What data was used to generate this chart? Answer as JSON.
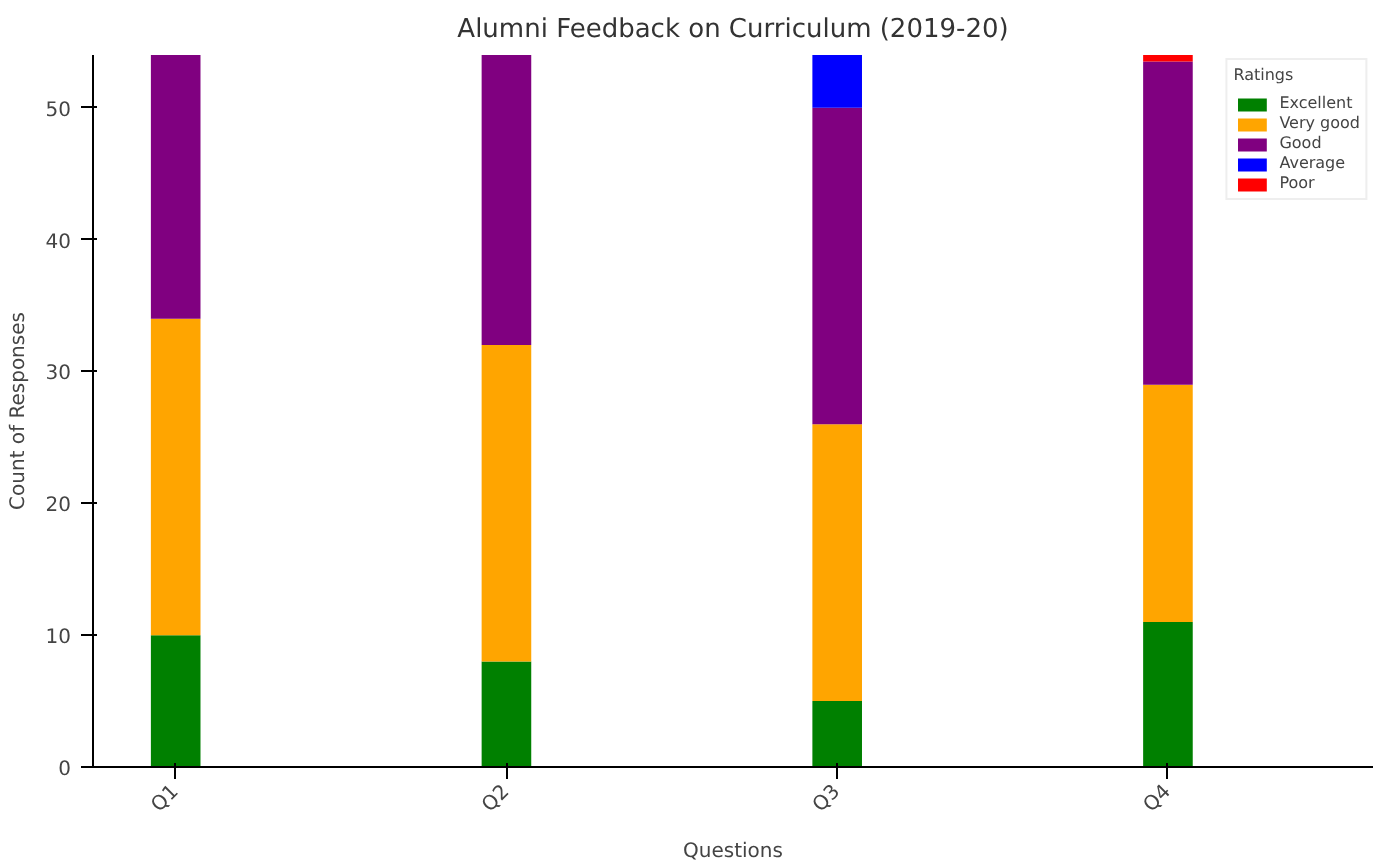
{
  "chart_data": {
    "type": "bar",
    "title": "Alumni Feedback on Curriculum (2019-20)",
    "xlabel": "Questions",
    "ylabel": "Count of Responses",
    "legend_title": "Ratings",
    "categories": [
      "Q1",
      "Q2",
      "Q3",
      "Q4"
    ],
    "stacked": true,
    "series": [
      {
        "name": "Excellent",
        "color": "#008000",
        "values": [
          10,
          8,
          5,
          11
        ]
      },
      {
        "name": "Very good",
        "color": "#ffa500",
        "values": [
          24,
          24,
          21,
          18
        ]
      },
      {
        "name": "Good",
        "color": "#800080",
        "values": [
          20,
          22,
          24,
          24.5
        ]
      },
      {
        "name": "Average",
        "color": "#0000ff",
        "values": [
          0,
          0,
          4,
          0
        ]
      },
      {
        "name": "Poor",
        "color": "#ff0000",
        "values": [
          0,
          0,
          0,
          0.5
        ]
      }
    ],
    "ylim": [
      0,
      54
    ],
    "yticks": [
      0,
      10,
      20,
      30,
      40,
      50
    ],
    "grid": false,
    "legend": "top right"
  }
}
